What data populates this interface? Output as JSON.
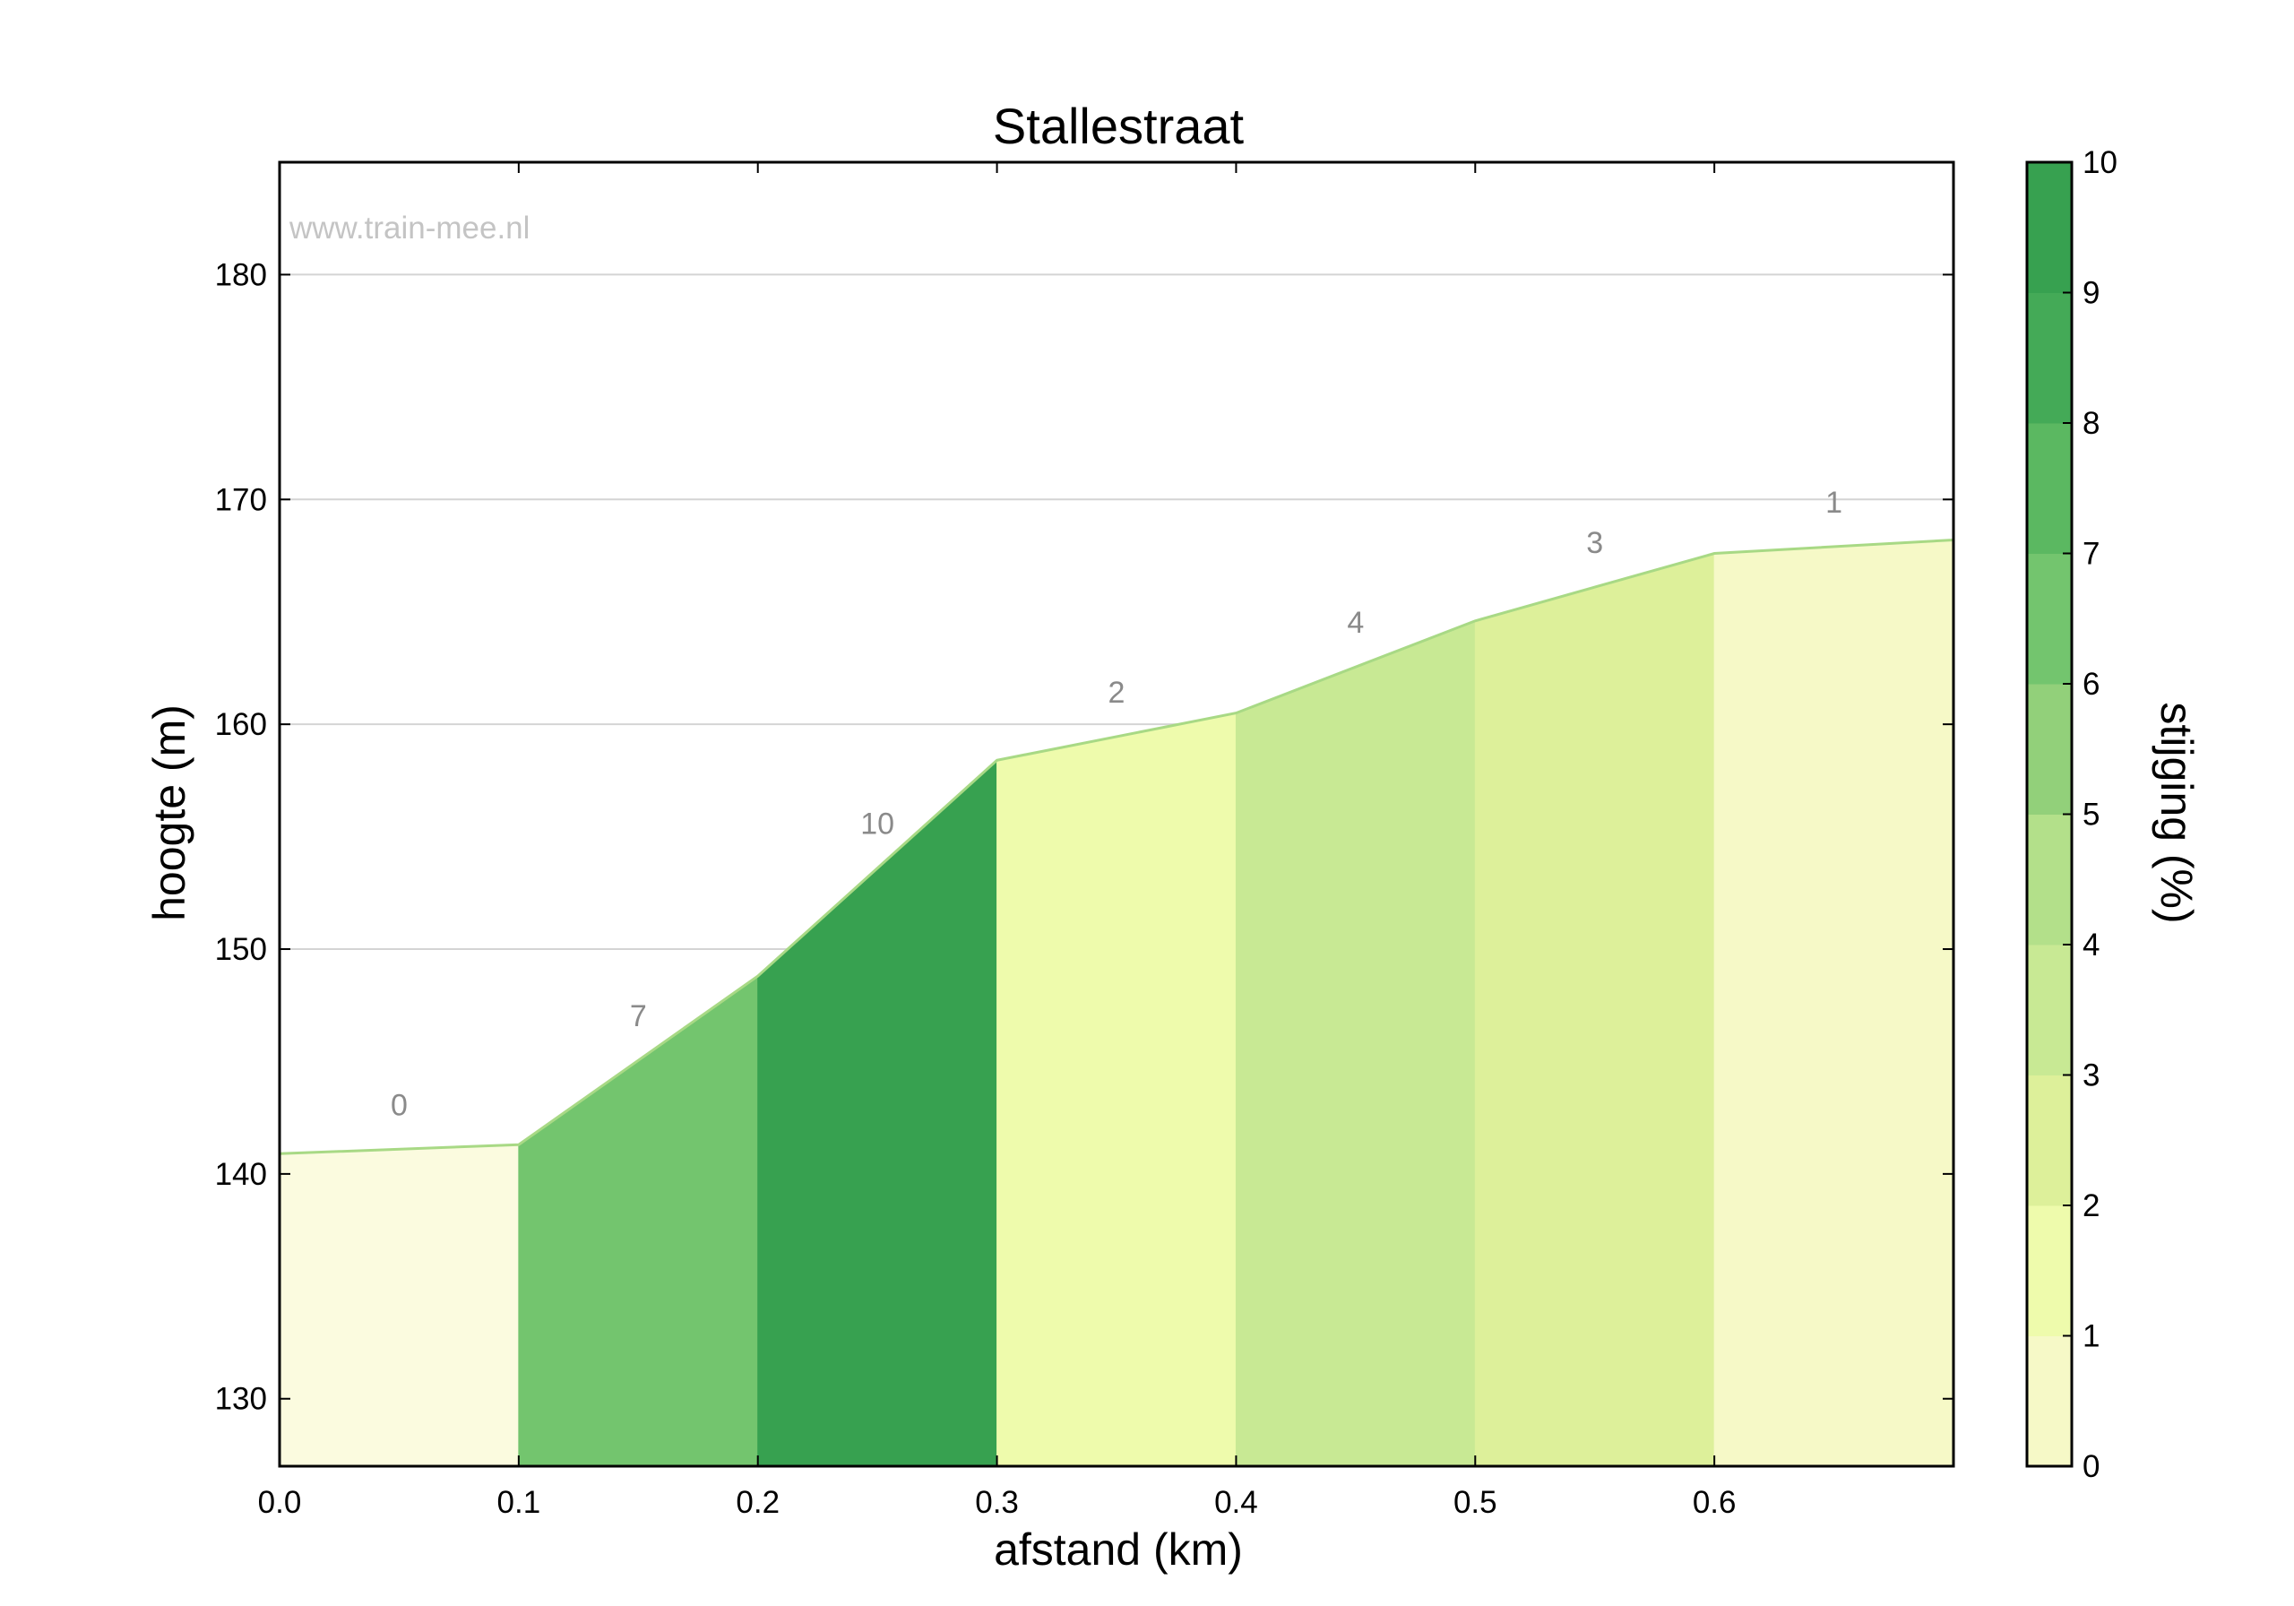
{
  "watermark": "www.train-mee.nl",
  "chart_data": {
    "type": "area",
    "title": "Stallestraat",
    "xlabel": "afstand (km)",
    "ylabel": "hoogte (m)",
    "colorbar_label": "stijging (%)",
    "xlim": [
      0,
      0.7
    ],
    "ylim": [
      127,
      185
    ],
    "xticks": [
      "0.0",
      "0.1",
      "0.2",
      "0.3",
      "0.4",
      "0.5",
      "0.6"
    ],
    "yticks": [
      "130",
      "140",
      "150",
      "160",
      "170",
      "180"
    ],
    "colorbar_ticks": [
      "0",
      "1",
      "2",
      "3",
      "4",
      "5",
      "6",
      "7",
      "8",
      "9",
      "10"
    ],
    "grid": true,
    "x": [
      0.0,
      0.1,
      0.2,
      0.3,
      0.4,
      0.5,
      0.6,
      0.7
    ],
    "elevation": [
      140.9,
      141.3,
      148.8,
      158.4,
      160.5,
      164.6,
      167.6,
      168.2
    ],
    "segments": [
      {
        "start": 0.0,
        "end": 0.1,
        "gradient": 0,
        "label": "0"
      },
      {
        "start": 0.1,
        "end": 0.2,
        "gradient": 7,
        "label": "7"
      },
      {
        "start": 0.2,
        "end": 0.3,
        "gradient": 10,
        "label": "10"
      },
      {
        "start": 0.3,
        "end": 0.4,
        "gradient": 2,
        "label": "2"
      },
      {
        "start": 0.4,
        "end": 0.5,
        "gradient": 4,
        "label": "4"
      },
      {
        "start": 0.5,
        "end": 0.6,
        "gradient": 3,
        "label": "3"
      },
      {
        "start": 0.6,
        "end": 0.7,
        "gradient": 1,
        "label": "1"
      }
    ],
    "colorscale": [
      "#fbfbdf",
      "#f6f9c7",
      "#eefbac",
      "#ddf09a",
      "#c8e994",
      "#b3e08a",
      "#92d07a",
      "#73c56e",
      "#5bb861",
      "#44aa57",
      "#37a150"
    ],
    "line_color": "#a8d985"
  }
}
